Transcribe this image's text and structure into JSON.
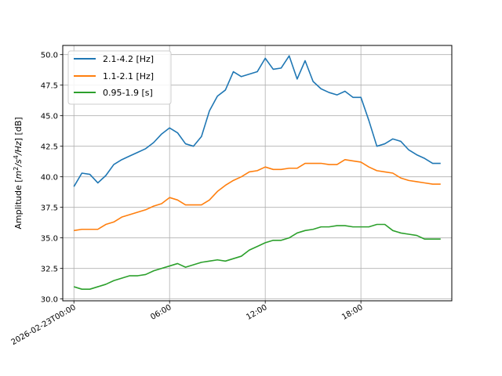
{
  "chart_data": {
    "type": "line",
    "title": "",
    "xlabel": "",
    "ylabel": "Amplitude [m²/s⁴/Hz] [dB]",
    "ylabel_parts": {
      "prefix": "Amplitude [",
      "m": "m",
      "exp2": "2",
      "s": "/s",
      "exp4": "4",
      "hz": "/Hz",
      "suffix": "] [dB]"
    },
    "x_unit": "hours",
    "xlim": [
      -0.7,
      23.7
    ],
    "ylim": [
      29.85,
      50.75
    ],
    "x_ticks": [
      {
        "value": 0,
        "label": "2026-02-23T00:00"
      },
      {
        "value": 6,
        "label": "06:00"
      },
      {
        "value": 12,
        "label": "12:00"
      },
      {
        "value": 18,
        "label": "18:00"
      }
    ],
    "y_ticks": [
      {
        "value": 30.0,
        "label": "30.0"
      },
      {
        "value": 32.5,
        "label": "32.5"
      },
      {
        "value": 35.0,
        "label": "35.0"
      },
      {
        "value": 37.5,
        "label": "37.5"
      },
      {
        "value": 40.0,
        "label": "40.0"
      },
      {
        "value": 42.5,
        "label": "42.5"
      },
      {
        "value": 45.0,
        "label": "45.0"
      },
      {
        "value": 47.5,
        "label": "47.5"
      },
      {
        "value": 50.0,
        "label": "50.0"
      }
    ],
    "grid": true,
    "legend_position": "top-left",
    "x": [
      0,
      0.5,
      1,
      1.5,
      2,
      2.5,
      3,
      3.5,
      4,
      4.5,
      5,
      5.5,
      6,
      6.5,
      7,
      7.5,
      8,
      8.5,
      9,
      9.5,
      10,
      10.5,
      11,
      11.5,
      12,
      12.5,
      13,
      13.5,
      14,
      14.5,
      15,
      15.5,
      16,
      16.5,
      17,
      17.5,
      18,
      18.5,
      19,
      19.5,
      20,
      20.5,
      21,
      21.5,
      22,
      22.5,
      23
    ],
    "series": [
      {
        "name": "2.1-4.2 [Hz]",
        "color": "#1f77b4",
        "values": [
          39.2,
          40.3,
          40.2,
          39.5,
          40.1,
          41.0,
          41.4,
          41.7,
          42.0,
          42.3,
          42.8,
          43.5,
          44.0,
          43.6,
          42.7,
          42.5,
          43.3,
          45.4,
          46.6,
          47.1,
          48.6,
          48.2,
          48.4,
          48.6,
          49.7,
          48.8,
          48.9,
          49.9,
          48.0,
          49.5,
          47.8,
          47.2,
          46.9,
          46.7,
          47.0,
          46.5,
          46.5,
          44.6,
          42.5,
          42.7,
          43.1,
          42.9,
          42.2,
          41.8,
          41.5,
          41.1,
          41.1
        ]
      },
      {
        "name": "1.1-2.1 [Hz]",
        "color": "#ff7f0e",
        "values": [
          35.6,
          35.7,
          35.7,
          35.7,
          36.1,
          36.3,
          36.7,
          36.9,
          37.1,
          37.3,
          37.6,
          37.8,
          38.3,
          38.1,
          37.7,
          37.7,
          37.7,
          38.1,
          38.8,
          39.3,
          39.7,
          40.0,
          40.4,
          40.5,
          40.8,
          40.6,
          40.6,
          40.7,
          40.7,
          41.1,
          41.1,
          41.1,
          41.0,
          41.0,
          41.4,
          41.3,
          41.2,
          40.8,
          40.5,
          40.4,
          40.3,
          39.9,
          39.7,
          39.6,
          39.5,
          39.4,
          39.4
        ]
      },
      {
        "name": "0.95-1.9 [s]",
        "color": "#2ca02c",
        "values": [
          31.0,
          30.8,
          30.8,
          31.0,
          31.2,
          31.5,
          31.7,
          31.9,
          31.9,
          32.0,
          32.3,
          32.5,
          32.7,
          32.9,
          32.6,
          32.8,
          33.0,
          33.1,
          33.2,
          33.1,
          33.3,
          33.5,
          34.0,
          34.3,
          34.6,
          34.8,
          34.8,
          35.0,
          35.4,
          35.6,
          35.7,
          35.9,
          35.9,
          36.0,
          36.0,
          35.9,
          35.9,
          35.9,
          36.1,
          36.1,
          35.6,
          35.4,
          35.3,
          35.2,
          34.9,
          34.9,
          34.9
        ]
      }
    ]
  }
}
